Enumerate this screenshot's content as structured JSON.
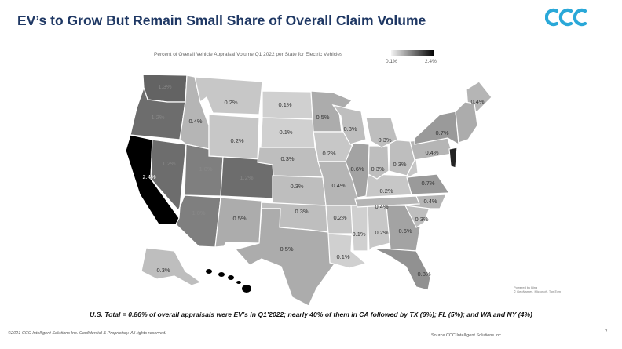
{
  "header": {
    "title": "EV’s to Grow But Remain Small Share of Overall Claim Volume",
    "logo_text": "CCC",
    "logo_color": "#2aa8d8"
  },
  "map": {
    "caption": "Percent of Overall Vehicle Appraisal Volume Q1 2022 per State for Electric Vehicles",
    "legend": {
      "min": "0.1%",
      "max": "2.4%",
      "min_value": 0.1,
      "max_value": 2.4
    },
    "attribution": [
      "Powered by Bing",
      "© GeoNames, Microsoft, TomTom"
    ],
    "states": [
      {
        "id": "WA",
        "label": "1.3%",
        "value": 1.3
      },
      {
        "id": "OR",
        "label": "1.2%",
        "value": 1.2
      },
      {
        "id": "CA",
        "label": "2.4%",
        "value": 2.4
      },
      {
        "id": "ID",
        "label": "0.4%",
        "value": 0.4
      },
      {
        "id": "MT",
        "label": "0.2%",
        "value": 0.2
      },
      {
        "id": "WY",
        "label": "0.2%",
        "value": 0.2
      },
      {
        "id": "NV",
        "label": "1.2%",
        "value": 1.2
      },
      {
        "id": "UT",
        "label": "1.0%",
        "value": 1.0
      },
      {
        "id": "CO",
        "label": "1.2%",
        "value": 1.2
      },
      {
        "id": "AZ",
        "label": "1.0%",
        "value": 1.0
      },
      {
        "id": "NM",
        "label": "0.5%",
        "value": 0.5
      },
      {
        "id": "ND",
        "label": "0.1%",
        "value": 0.1
      },
      {
        "id": "SD",
        "label": "0.1%",
        "value": 0.1
      },
      {
        "id": "NE",
        "label": "0.3%",
        "value": 0.3
      },
      {
        "id": "KS",
        "label": "0.3%",
        "value": 0.3
      },
      {
        "id": "OK",
        "label": "0.3%",
        "value": 0.3
      },
      {
        "id": "TX",
        "label": "0.5%",
        "value": 0.5
      },
      {
        "id": "MN",
        "label": "0.5%",
        "value": 0.5
      },
      {
        "id": "IA",
        "label": "0.2%",
        "value": 0.2
      },
      {
        "id": "MO",
        "label": "0.4%",
        "value": 0.4
      },
      {
        "id": "AR",
        "label": "0.2%",
        "value": 0.2
      },
      {
        "id": "LA",
        "label": "0.1%",
        "value": 0.1
      },
      {
        "id": "WI",
        "label": "0.3%",
        "value": 0.3
      },
      {
        "id": "IL",
        "label": "0.6%",
        "value": 0.6
      },
      {
        "id": "MI",
        "label": "0.3%",
        "value": 0.3
      },
      {
        "id": "IN",
        "label": "0.3%",
        "value": 0.3
      },
      {
        "id": "OH",
        "label": "0.3%",
        "value": 0.3
      },
      {
        "id": "KY",
        "label": "0.2%",
        "value": 0.2
      },
      {
        "id": "TN",
        "label": "0.4%",
        "value": 0.4
      },
      {
        "id": "MS",
        "label": "0.1%",
        "value": 0.1
      },
      {
        "id": "AL",
        "label": "0.2%",
        "value": 0.2
      },
      {
        "id": "GA",
        "label": "0.6%",
        "value": 0.6
      },
      {
        "id": "FL",
        "label": "0.8%",
        "value": 0.8
      },
      {
        "id": "SC",
        "label": "0.3%",
        "value": 0.3
      },
      {
        "id": "NC",
        "label": "0.4%",
        "value": 0.4
      },
      {
        "id": "VA",
        "label": "0.7%",
        "value": 0.7
      },
      {
        "id": "WV",
        "label": "",
        "value": 0.2
      },
      {
        "id": "PA",
        "label": "0.4%",
        "value": 0.4
      },
      {
        "id": "NY",
        "label": "0.7%",
        "value": 0.7
      },
      {
        "id": "ME",
        "label": "0.4%",
        "value": 0.4
      },
      {
        "id": "AK",
        "label": "0.3%",
        "value": 0.3
      }
    ]
  },
  "summary": "U.S. Total = 0.86% of overall appraisals were EV’s in Q1’2022; nearly 40% of them in CA followed by TX (6%); FL (5%); and WA and NY (4%)",
  "footer": {
    "copyright": "©2021 CCC Intelligent Solutions Inc. Confidential & Proprietary.  All rights reserved.",
    "source": "Source CCC Intelligent Solutions Inc.",
    "page": "7"
  }
}
